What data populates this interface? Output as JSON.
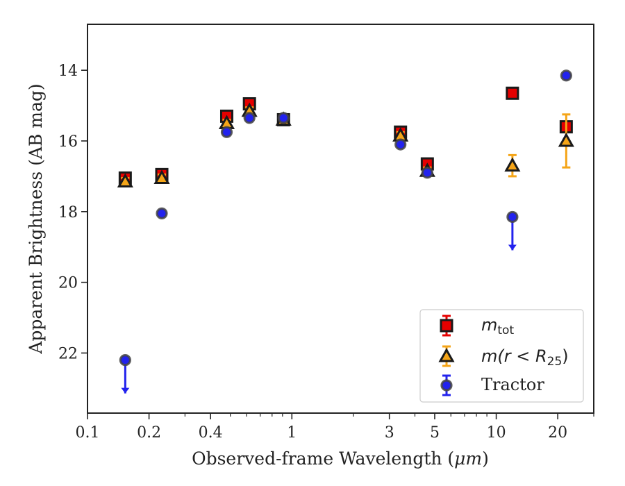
{
  "chart_data": {
    "type": "scatter",
    "xlabel": "Observed-frame Wavelength (μm)",
    "ylabel": "Apparent Brightness (AB mag)",
    "x_scale": "log",
    "xlim": [
      0.1,
      30
    ],
    "ylim": [
      23.7,
      12.7
    ],
    "y_inverted": true,
    "grid": false,
    "legend_position": "lower-right",
    "x_ticks": [
      0.1,
      0.2,
      0.4,
      1,
      3,
      5,
      10,
      20
    ],
    "x_tick_labels": [
      "0.1",
      "0.2",
      "0.4",
      "1",
      "3",
      "5",
      "10",
      "20"
    ],
    "y_ticks": [
      14,
      16,
      18,
      20,
      22
    ],
    "y_tick_labels": [
      "14",
      "16",
      "18",
      "20",
      "22"
    ],
    "series": [
      {
        "key": "mtot",
        "name": "m_tot",
        "marker": "square",
        "color": "#e60000",
        "edge": "#1a1a1a",
        "points": [
          {
            "x": 0.153,
            "y": 17.05,
            "err": 0.1
          },
          {
            "x": 0.231,
            "y": 16.95,
            "err": 0.1
          },
          {
            "x": 0.48,
            "y": 15.3,
            "err": 0.1
          },
          {
            "x": 0.62,
            "y": 14.95,
            "err": 0.1
          },
          {
            "x": 0.91,
            "y": 15.4,
            "err": 0.1
          },
          {
            "x": 3.4,
            "y": 15.75,
            "err": 0.1
          },
          {
            "x": 4.6,
            "y": 16.65,
            "err": 0.1
          },
          {
            "x": 12.0,
            "y": 14.65,
            "err": 0.08
          },
          {
            "x": 22.0,
            "y": 15.6,
            "err": 0.1
          }
        ]
      },
      {
        "key": "mr25",
        "name": "m(r < R25)",
        "marker": "triangle",
        "color": "#f5a518",
        "edge": "#1a1a1a",
        "points": [
          {
            "x": 0.153,
            "y": 17.15,
            "err": 0.1
          },
          {
            "x": 0.231,
            "y": 17.05,
            "err": 0.1
          },
          {
            "x": 0.48,
            "y": 15.5,
            "err": 0.1
          },
          {
            "x": 0.62,
            "y": 15.15,
            "err": 0.1
          },
          {
            "x": 0.91,
            "y": 15.4,
            "err": 0.1
          },
          {
            "x": 3.4,
            "y": 15.85,
            "err": 0.1
          },
          {
            "x": 4.6,
            "y": 16.85,
            "err": 0.1
          },
          {
            "x": 12.0,
            "y": 16.7,
            "err": 0.3
          },
          {
            "x": 22.0,
            "y": 16.0,
            "err": 0.75
          }
        ]
      },
      {
        "key": "tractor",
        "name": "Tractor",
        "marker": "circle",
        "color": "#2222ee",
        "edge": "#444444",
        "points": [
          {
            "x": 0.153,
            "y": 22.2,
            "upper_limit": true
          },
          {
            "x": 0.231,
            "y": 18.05
          },
          {
            "x": 0.48,
            "y": 15.75
          },
          {
            "x": 0.62,
            "y": 15.35
          },
          {
            "x": 0.91,
            "y": 15.35
          },
          {
            "x": 3.4,
            "y": 16.1
          },
          {
            "x": 4.6,
            "y": 16.9
          },
          {
            "x": 12.0,
            "y": 18.15,
            "upper_limit": true
          },
          {
            "x": 22.0,
            "y": 14.15
          }
        ]
      }
    ]
  },
  "legend": {
    "mtot": {
      "base": "m",
      "sub": "tot"
    },
    "mr25": {
      "pre": "m(r < R",
      "sub": "25",
      "post": ")"
    },
    "tractor": {
      "text": "Tractor"
    }
  },
  "axes": {
    "xlabel_pre": "Observed-frame Wavelength (",
    "xlabel_unit": "μm",
    "xlabel_post": ")",
    "ylabel": "Apparent Brightness (AB mag)"
  }
}
